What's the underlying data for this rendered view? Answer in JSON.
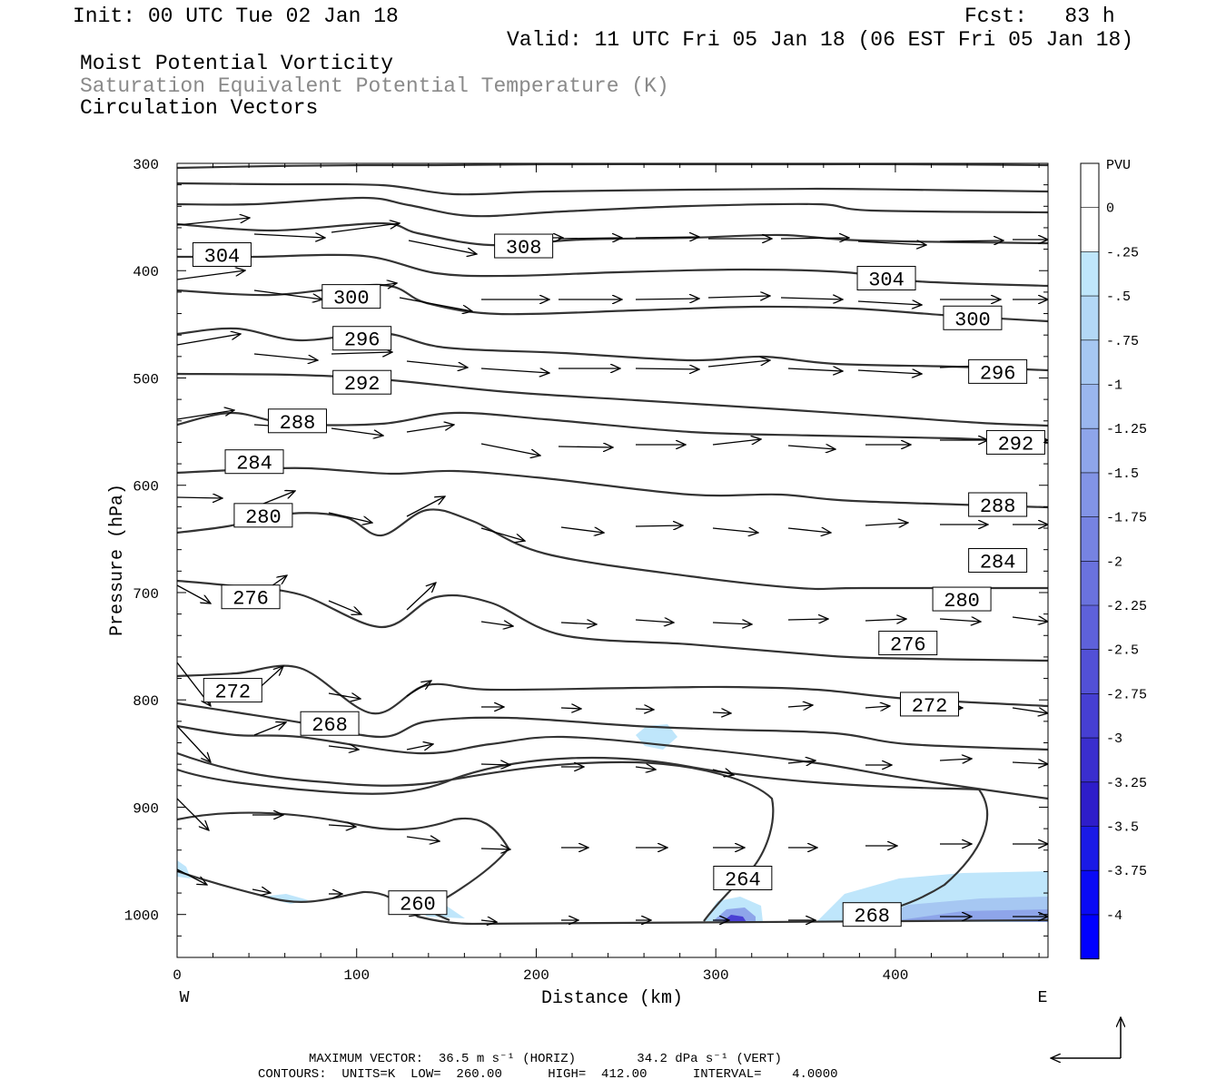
{
  "header": {
    "init": "Init: 00 UTC Tue 02 Jan 18",
    "fcst": "Fcst:   83 h",
    "valid": "Valid: 11 UTC Fri 05 Jan 18 (06 EST Fri 05 Jan 18)",
    "field1": "Moist Potential Vorticity",
    "field2": "Saturation Equivalent Potential Temperature (K)",
    "field3": "Circulation Vectors"
  },
  "footer": {
    "max_vector": "MAXIMUM VECTOR:  36.5 m s⁻¹ (HORIZ)        34.2 dPa s⁻¹ (VERT)",
    "contours": "CONTOURS:  UNITS=K  LOW=  260.00      HIGH=  412.00      INTERVAL=    4.0000"
  },
  "colors": {
    "contour": "#333333",
    "pv_colors": [
      "#ffffff",
      "#ffffff",
      "#bfe6fb",
      "#b3d8f6",
      "#a6c7f2",
      "#9ab6ee",
      "#8ea5ea",
      "#8294e6",
      "#7683e2",
      "#6a72de",
      "#5e61da",
      "#5250d6",
      "#463fd2",
      "#3a2ece",
      "#2e1dca",
      "#1a1ae6",
      "#0a0af5",
      "#0000ff"
    ]
  },
  "chart_data": {
    "type": "cross-section",
    "xlabel": "Distance (km)",
    "ylabel": "Pressure (hPa)",
    "xlim": [
      0,
      485
    ],
    "ylim": [
      1040,
      300
    ],
    "x_ticks": [
      0,
      100,
      200,
      300,
      400
    ],
    "y_ticks": [
      300,
      400,
      500,
      600,
      700,
      800,
      900,
      1000
    ],
    "west_label": "W",
    "east_label": "E",
    "colorbar": {
      "title": "PVU",
      "labels": [
        "0",
        "-.25",
        "-.5",
        "-.75",
        "-1",
        "-1.25",
        "-1.5",
        "-1.75",
        "-2",
        "-2.25",
        "-2.5",
        "-2.75",
        "-3",
        "-3.25",
        "-3.5",
        "-3.75",
        "-4"
      ]
    },
    "contour_labels": [
      {
        "text": "308",
        "x": 193,
        "p": 377
      },
      {
        "text": "304",
        "x": 25,
        "p": 385
      },
      {
        "text": "304",
        "x": 395,
        "p": 407
      },
      {
        "text": "300",
        "x": 97,
        "p": 424
      },
      {
        "text": "300",
        "x": 443,
        "p": 444
      },
      {
        "text": "296",
        "x": 103,
        "p": 463
      },
      {
        "text": "296",
        "x": 457,
        "p": 494
      },
      {
        "text": "292",
        "x": 103,
        "p": 504
      },
      {
        "text": "292",
        "x": 467,
        "p": 560
      },
      {
        "text": "288",
        "x": 67,
        "p": 540
      },
      {
        "text": "288",
        "x": 457,
        "p": 618
      },
      {
        "text": "284",
        "x": 43,
        "p": 578
      },
      {
        "text": "284",
        "x": 457,
        "p": 670
      },
      {
        "text": "280",
        "x": 48,
        "p": 628
      },
      {
        "text": "280",
        "x": 437,
        "p": 706
      },
      {
        "text": "276",
        "x": 41,
        "p": 704
      },
      {
        "text": "276",
        "x": 407,
        "p": 747
      },
      {
        "text": "272",
        "x": 31,
        "p": 791
      },
      {
        "text": "272",
        "x": 419,
        "p": 804
      },
      {
        "text": "268",
        "x": 85,
        "p": 822
      },
      {
        "text": "268",
        "x": 387,
        "p": 1000
      },
      {
        "text": "264",
        "x": 315,
        "p": 966
      },
      {
        "text": "260",
        "x": 134,
        "p": 989
      }
    ]
  }
}
